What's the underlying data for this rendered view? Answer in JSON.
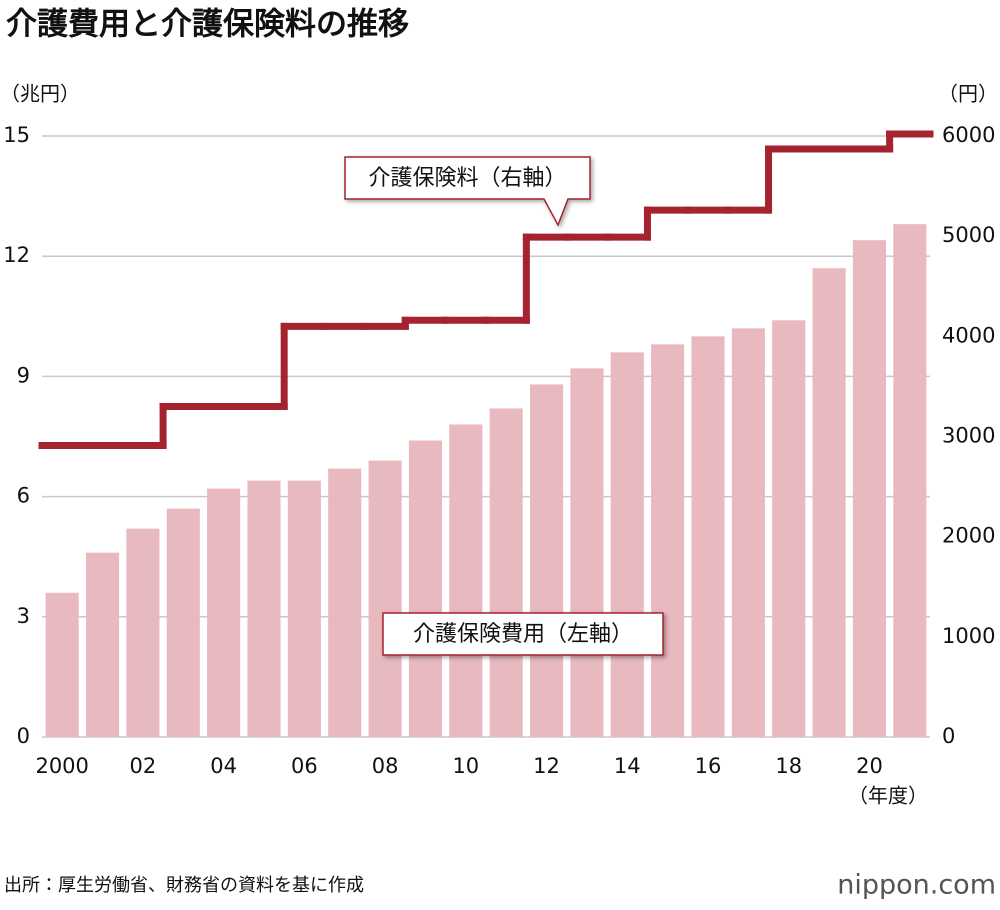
{
  "chart_data": {
    "type": "bar",
    "title": "介護費用と介護保険料の推移",
    "y_unit": "（兆円）",
    "y2_unit": "（円）",
    "x_unit": "（年度）",
    "categories": [
      "2000",
      null,
      "02",
      null,
      "04",
      null,
      "06",
      null,
      "08",
      null,
      "10",
      null,
      "12",
      null,
      "14",
      null,
      "16",
      null,
      "18",
      null,
      "20",
      null
    ],
    "series": [
      {
        "name": "介護保険費用（左軸）",
        "type": "bar",
        "color": "#e8b9bf",
        "values": [
          3.6,
          4.6,
          5.2,
          5.7,
          6.2,
          6.4,
          6.4,
          6.7,
          6.9,
          7.4,
          7.8,
          8.2,
          8.8,
          9.2,
          9.6,
          9.8,
          10.0,
          10.2,
          10.4,
          11.7,
          12.4,
          12.8
        ]
      },
      {
        "name": "介護保険料（右軸）",
        "type": "step",
        "color": "#a5232f",
        "axis": "y2",
        "values": [
          2910,
          2910,
          2910,
          3300,
          3300,
          3300,
          4100,
          4100,
          4100,
          4160,
          4160,
          4160,
          4990,
          4990,
          4990,
          5260,
          5260,
          5260,
          5870,
          5870,
          5870,
          6020
        ]
      }
    ],
    "ylim": [
      0,
      15
    ],
    "yticks": [
      0,
      3,
      6,
      9,
      12,
      15
    ],
    "y2lim": [
      0,
      6000
    ],
    "y2ticks": [
      0,
      1000,
      2000,
      3000,
      4000,
      5000,
      6000
    ],
    "grid": true
  },
  "source": "出所：厚生労働省、財務省の資料を基に作成",
  "logo": "nippon.com"
}
